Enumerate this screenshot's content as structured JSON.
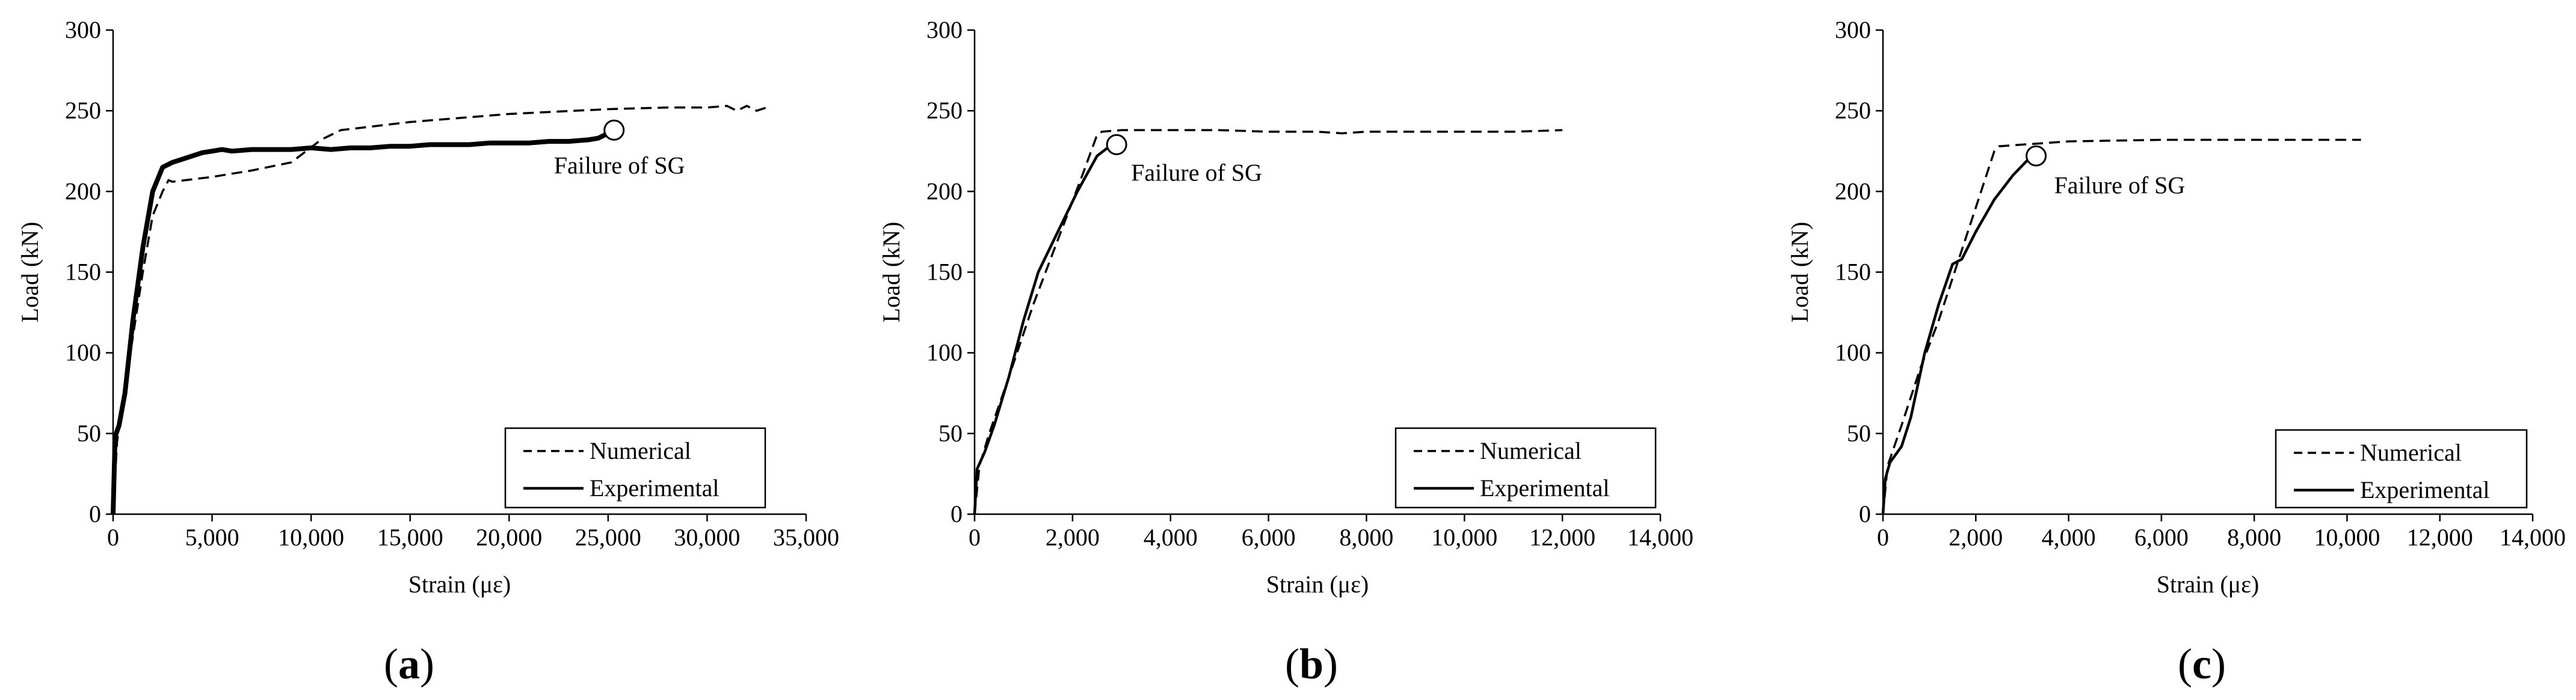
{
  "figure": {
    "background": "#ffffff",
    "ink": "#000000"
  },
  "chart_data": [
    {
      "panel_label": "a",
      "type": "line",
      "xlabel": "Strain (με)",
      "ylabel": "Load (kN)",
      "xlim": [
        0,
        35000
      ],
      "ylim": [
        0,
        300
      ],
      "xticks": [
        0,
        5000,
        10000,
        15000,
        20000,
        25000,
        30000,
        35000
      ],
      "xtick_labels": [
        "0",
        "5,000",
        "10,000",
        "15,000",
        "20,000",
        "25,000",
        "30,000",
        "35,000"
      ],
      "yticks": [
        0,
        50,
        100,
        150,
        200,
        250,
        300
      ],
      "ytick_labels": [
        "0",
        "50",
        "100",
        "150",
        "200",
        "250",
        "300"
      ],
      "annotation": {
        "text": "Failure of SG",
        "x": 25300,
        "y": 238
      },
      "legend": {
        "position": "bottom-right",
        "entries": [
          "Numerical",
          "Experimental"
        ]
      },
      "series": [
        {
          "name": "Numerical",
          "style": "dashed",
          "x": [
            0,
            200,
            500,
            1000,
            1500,
            2000,
            2500,
            2800,
            3000,
            5000,
            7000,
            9000,
            10500,
            11500,
            15000,
            20000,
            25000,
            28000,
            30000,
            31000,
            31500,
            32000,
            32500,
            33000
          ],
          "y": [
            0,
            45,
            70,
            110,
            150,
            185,
            200,
            207,
            206,
            209,
            213,
            218,
            232,
            238,
            243,
            248,
            251,
            252,
            252,
            253,
            250,
            253,
            250,
            252
          ]
        },
        {
          "name": "Experimental",
          "style": "solid-heavy",
          "x": [
            0,
            100,
            300,
            600,
            1000,
            1500,
            2000,
            2500,
            3000,
            3500,
            4000,
            4500,
            5000,
            5500,
            6000,
            7000,
            8000,
            9000,
            10000,
            11000,
            12000,
            13000,
            14000,
            15000,
            16000,
            17000,
            18000,
            19000,
            20000,
            21000,
            22000,
            23000,
            24000,
            24500,
            25000,
            25300
          ],
          "y": [
            0,
            48,
            55,
            75,
            120,
            165,
            200,
            215,
            218,
            220,
            222,
            224,
            225,
            226,
            225,
            226,
            226,
            226,
            227,
            226,
            227,
            227,
            228,
            228,
            229,
            229,
            229,
            230,
            230,
            230,
            231,
            231,
            232,
            233,
            236,
            238
          ]
        }
      ]
    },
    {
      "panel_label": "b",
      "type": "line",
      "xlabel": "Strain (με)",
      "ylabel": "Load (kN)",
      "xlim": [
        0,
        14000
      ],
      "ylim": [
        0,
        300
      ],
      "xticks": [
        0,
        2000,
        4000,
        6000,
        8000,
        10000,
        12000,
        14000
      ],
      "xtick_labels": [
        "0",
        "2,000",
        "4,000",
        "6,000",
        "8,000",
        "10,000",
        "12,000",
        "14,000"
      ],
      "yticks": [
        0,
        50,
        100,
        150,
        200,
        250,
        300
      ],
      "ytick_labels": [
        "0",
        "50",
        "100",
        "150",
        "200",
        "250",
        "300"
      ],
      "annotation": {
        "text": "Failure of SG",
        "x": 2900,
        "y": 229
      },
      "legend": {
        "position": "bottom-right",
        "entries": [
          "Numerical",
          "Experimental"
        ]
      },
      "series": [
        {
          "name": "Numerical",
          "style": "dashed",
          "x": [
            0,
            100,
            300,
            700,
            1200,
            1700,
            2200,
            2500,
            2600,
            3000,
            4000,
            5000,
            6000,
            7000,
            7500,
            8000,
            9000,
            10000,
            11000,
            12000
          ],
          "y": [
            0,
            30,
            50,
            85,
            130,
            170,
            210,
            235,
            237,
            238,
            238,
            238,
            237,
            237,
            236,
            237,
            237,
            237,
            237,
            238
          ]
        },
        {
          "name": "Experimental",
          "style": "solid",
          "x": [
            0,
            50,
            200,
            400,
            700,
            1000,
            1300,
            1700,
            2100,
            2500,
            2800
          ],
          "y": [
            0,
            28,
            38,
            55,
            85,
            120,
            150,
            175,
            200,
            222,
            229
          ]
        }
      ]
    },
    {
      "panel_label": "c",
      "type": "line",
      "xlabel": "Strain (με)",
      "ylabel": "Load (kN)",
      "xlim": [
        0,
        14000
      ],
      "ylim": [
        0,
        300
      ],
      "xticks": [
        0,
        2000,
        4000,
        6000,
        8000,
        10000,
        12000,
        14000
      ],
      "xtick_labels": [
        "0",
        "2,000",
        "4,000",
        "6,000",
        "8,000",
        "10,000",
        "12,000",
        "14,000"
      ],
      "yticks": [
        0,
        50,
        100,
        150,
        200,
        250,
        300
      ],
      "ytick_labels": [
        "0",
        "50",
        "100",
        "150",
        "200",
        "250",
        "300"
      ],
      "annotation": {
        "text": "Failure of SG",
        "x": 3300,
        "y": 222
      },
      "legend": {
        "position": "bottom-right",
        "entries": [
          "Numerical",
          "Experimental"
        ]
      },
      "series": [
        {
          "name": "Numerical",
          "style": "dashed",
          "x": [
            0,
            100,
            400,
            800,
            1200,
            1600,
            2000,
            2400,
            2500,
            3000,
            4000,
            6000,
            8000,
            10000,
            10300
          ],
          "y": [
            0,
            30,
            55,
            90,
            120,
            155,
            190,
            225,
            228,
            229,
            231,
            232,
            232,
            232,
            232
          ]
        },
        {
          "name": "Experimental",
          "style": "solid",
          "x": [
            0,
            50,
            150,
            400,
            600,
            900,
            1200,
            1500,
            1700,
            2000,
            2400,
            2800,
            3200
          ],
          "y": [
            0,
            22,
            32,
            42,
            60,
            100,
            130,
            155,
            158,
            175,
            195,
            210,
            222
          ]
        }
      ]
    }
  ]
}
